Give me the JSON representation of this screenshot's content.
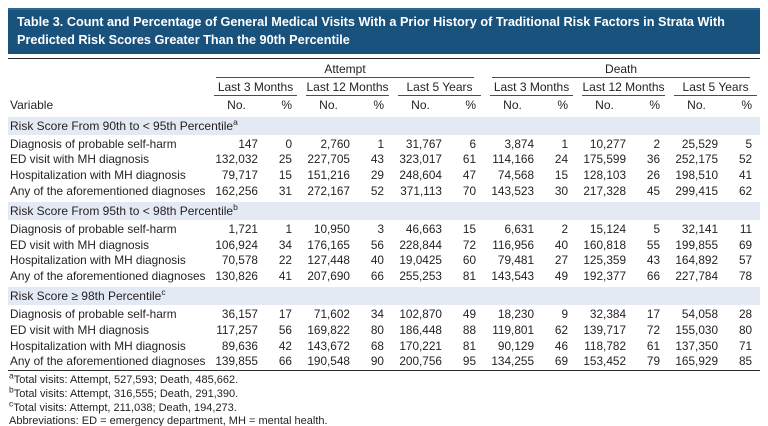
{
  "title": "Table 3. Count and Percentage of General Medical Visits With a Prior History of Traditional Risk Factors in Strata With Predicted Risk Scores Greater Than the 90th Percentile",
  "colors": {
    "title_bg": "#1A527E",
    "title_text": "#FFFFFF",
    "section_row_bg": "#E3EAF4",
    "rule_dark": "#2B2B2B",
    "rule_thin": "#4D4D4F",
    "bottom_rule_blue": "#3F76A9",
    "body_text": "#231F20"
  },
  "header": {
    "variable_label": "Variable",
    "groups": [
      {
        "label": "Attempt"
      },
      {
        "label": "Death"
      }
    ],
    "periods": [
      "Last 3 Months",
      "Last 12 Months",
      "Last 5 Years"
    ],
    "metrics": [
      "No.",
      "%"
    ]
  },
  "sections": [
    {
      "label": "Risk Score From 90th to < 95th Percentile",
      "footnote_marker": "a",
      "rows": [
        {
          "variable": "Diagnosis of probable self-harm",
          "values": [
            "147",
            "0",
            "2,760",
            "1",
            "31,767",
            "6",
            "3,874",
            "1",
            "10,277",
            "2",
            "25,529",
            "5"
          ]
        },
        {
          "variable": "ED visit with MH diagnosis",
          "values": [
            "132,032",
            "25",
            "227,705",
            "43",
            "323,017",
            "61",
            "114,166",
            "24",
            "175,599",
            "36",
            "252,175",
            "52"
          ]
        },
        {
          "variable": "Hospitalization with MH diagnosis",
          "values": [
            "79,717",
            "15",
            "151,216",
            "29",
            "248,604",
            "47",
            "74,568",
            "15",
            "128,103",
            "26",
            "198,510",
            "41"
          ]
        },
        {
          "variable": "Any of the aforementioned diagnoses",
          "values": [
            "162,256",
            "31",
            "272,167",
            "52",
            "371,113",
            "70",
            "143,523",
            "30",
            "217,328",
            "45",
            "299,415",
            "62"
          ]
        }
      ]
    },
    {
      "label": "Risk Score From 95th to < 98th Percentile",
      "footnote_marker": "b",
      "rows": [
        {
          "variable": "Diagnosis of probable self-harm",
          "values": [
            "1,721",
            "1",
            "10,950",
            "3",
            "46,663",
            "15",
            "6,631",
            "2",
            "15,124",
            "5",
            "32,141",
            "11"
          ]
        },
        {
          "variable": "ED visit with MH diagnosis",
          "values": [
            "106,924",
            "34",
            "176,165",
            "56",
            "228,844",
            "72",
            "116,956",
            "40",
            "160,818",
            "55",
            "199,855",
            "69"
          ]
        },
        {
          "variable": "Hospitalization with MH diagnosis",
          "values": [
            "70,578",
            "22",
            "127,448",
            "40",
            "19,0425",
            "60",
            "79,481",
            "27",
            "125,359",
            "43",
            "164,892",
            "57"
          ]
        },
        {
          "variable": "Any of the aforementioned diagnoses",
          "values": [
            "130,826",
            "41",
            "207,690",
            "66",
            "255,253",
            "81",
            "143,543",
            "49",
            "192,377",
            "66",
            "227,784",
            "78"
          ]
        }
      ]
    },
    {
      "label": "Risk Score ≥ 98th Percentile",
      "footnote_marker": "c",
      "rows": [
        {
          "variable": "Diagnosis of probable self-harm",
          "values": [
            "36,157",
            "17",
            "71,602",
            "34",
            "102,870",
            "49",
            "18,230",
            "9",
            "32,384",
            "17",
            "54,058",
            "28"
          ]
        },
        {
          "variable": "ED visit with MH diagnosis",
          "values": [
            "117,257",
            "56",
            "169,822",
            "80",
            "186,448",
            "88",
            "119,801",
            "62",
            "139,717",
            "72",
            "155,030",
            "80"
          ]
        },
        {
          "variable": "Hospitalization with MH diagnosis",
          "values": [
            "89,636",
            "42",
            "143,672",
            "68",
            "170,221",
            "81",
            "90,129",
            "46",
            "118,782",
            "61",
            "137,350",
            "71"
          ]
        },
        {
          "variable": "Any of the aforementioned diagnoses",
          "values": [
            "139,855",
            "66",
            "190,548",
            "90",
            "200,756",
            "95",
            "134,255",
            "69",
            "153,452",
            "79",
            "165,929",
            "85"
          ]
        }
      ]
    }
  ],
  "footnotes": [
    {
      "marker": "a",
      "text": "Total visits: Attempt, 527,593; Death, 485,662."
    },
    {
      "marker": "b",
      "text": "Total visits: Attempt, 316,555; Death, 291,390."
    },
    {
      "marker": "c",
      "text": "Total visits: Attempt, 211,038; Death, 194,273."
    },
    {
      "marker": "",
      "text": "Abbreviations: ED = emergency department, MH = mental health."
    }
  ]
}
